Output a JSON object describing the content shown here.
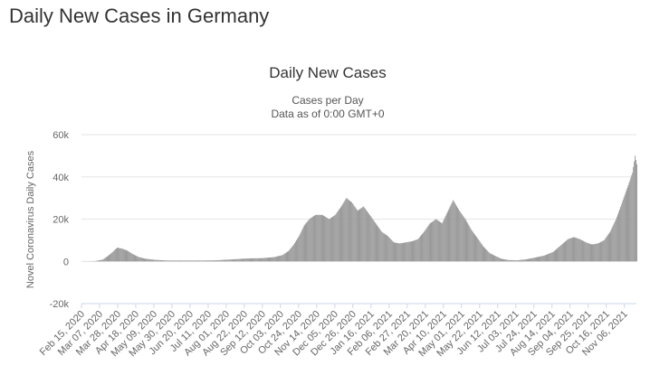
{
  "page": {
    "title": "Daily New Cases in Germany"
  },
  "chart_data": {
    "type": "bar",
    "title": "Daily New Cases",
    "subtitle": [
      "Cases per Day",
      "Data as of 0:00 GMT+0"
    ],
    "ylabel": "Novel Coronavirus Daily Cases",
    "xlabel": "",
    "ylim": [
      -20000,
      60000
    ],
    "yticks": [
      -20000,
      0,
      20000,
      40000,
      60000
    ],
    "ytick_labels": [
      "-20k",
      "0",
      "20k",
      "40k",
      "60k"
    ],
    "xlim": [
      "2020-02-15",
      "2021-11-20"
    ],
    "xtick_labels": [
      "Feb 15, 2020",
      "Mar 07, 2020",
      "Mar 28, 2020",
      "Apr 18, 2020",
      "May 09, 2020",
      "May 30, 2020",
      "Jun 20, 2020",
      "Jul 11, 2020",
      "Aug 01, 2020",
      "Aug 22, 2020",
      "Sep 12, 2020",
      "Oct 03, 2020",
      "Oct 24, 2020",
      "Nov 14, 2020",
      "Dec 05, 2020",
      "Dec 26, 2020",
      "Jan 16, 2021",
      "Feb 06, 2021",
      "Feb 27, 2021",
      "Mar 20, 2021",
      "Apr 10, 2021",
      "May 01, 2021",
      "May 22, 2021",
      "Jun 12, 2021",
      "Jul 03, 2021",
      "Jul 24, 2021",
      "Aug 14, 2021",
      "Sep 04, 2021",
      "Sep 25, 2021",
      "Oct 16, 2021",
      "Nov 06, 2021"
    ],
    "grid": true,
    "legend": "none",
    "color": "#999999",
    "series": [
      {
        "values": [
          {
            "x": "2020-02-15",
            "y": 0
          },
          {
            "x": "2020-03-01",
            "y": 100
          },
          {
            "x": "2020-03-10",
            "y": 800
          },
          {
            "x": "2020-03-16",
            "y": 2500
          },
          {
            "x": "2020-03-22",
            "y": 4500
          },
          {
            "x": "2020-03-27",
            "y": 6500
          },
          {
            "x": "2020-04-02",
            "y": 6000
          },
          {
            "x": "2020-04-08",
            "y": 5000
          },
          {
            "x": "2020-04-14",
            "y": 3500
          },
          {
            "x": "2020-04-20",
            "y": 2200
          },
          {
            "x": "2020-04-28",
            "y": 1300
          },
          {
            "x": "2020-05-10",
            "y": 700
          },
          {
            "x": "2020-05-25",
            "y": 400
          },
          {
            "x": "2020-06-15",
            "y": 400
          },
          {
            "x": "2020-07-01",
            "y": 400
          },
          {
            "x": "2020-07-20",
            "y": 500
          },
          {
            "x": "2020-08-10",
            "y": 1000
          },
          {
            "x": "2020-08-25",
            "y": 1400
          },
          {
            "x": "2020-09-10",
            "y": 1500
          },
          {
            "x": "2020-09-25",
            "y": 2000
          },
          {
            "x": "2020-10-05",
            "y": 3000
          },
          {
            "x": "2020-10-12",
            "y": 5000
          },
          {
            "x": "2020-10-18",
            "y": 8000
          },
          {
            "x": "2020-10-24",
            "y": 12000
          },
          {
            "x": "2020-10-30",
            "y": 17000
          },
          {
            "x": "2020-11-05",
            "y": 20000
          },
          {
            "x": "2020-11-12",
            "y": 22000
          },
          {
            "x": "2020-11-20",
            "y": 22000
          },
          {
            "x": "2020-11-28",
            "y": 20000
          },
          {
            "x": "2020-12-05",
            "y": 22000
          },
          {
            "x": "2020-12-12",
            "y": 26000
          },
          {
            "x": "2020-12-18",
            "y": 30000
          },
          {
            "x": "2020-12-24",
            "y": 28000
          },
          {
            "x": "2020-12-31",
            "y": 24000
          },
          {
            "x": "2021-01-07",
            "y": 26000
          },
          {
            "x": "2021-01-14",
            "y": 22000
          },
          {
            "x": "2021-01-21",
            "y": 18000
          },
          {
            "x": "2021-01-28",
            "y": 14000
          },
          {
            "x": "2021-02-04",
            "y": 12000
          },
          {
            "x": "2021-02-11",
            "y": 9000
          },
          {
            "x": "2021-02-18",
            "y": 8500
          },
          {
            "x": "2021-02-25",
            "y": 9000
          },
          {
            "x": "2021-03-04",
            "y": 9500
          },
          {
            "x": "2021-03-11",
            "y": 10500
          },
          {
            "x": "2021-03-18",
            "y": 14000
          },
          {
            "x": "2021-03-25",
            "y": 18000
          },
          {
            "x": "2021-04-01",
            "y": 20000
          },
          {
            "x": "2021-04-08",
            "y": 18000
          },
          {
            "x": "2021-04-15",
            "y": 24000
          },
          {
            "x": "2021-04-21",
            "y": 29000
          },
          {
            "x": "2021-04-28",
            "y": 24000
          },
          {
            "x": "2021-05-05",
            "y": 20000
          },
          {
            "x": "2021-05-12",
            "y": 15000
          },
          {
            "x": "2021-05-19",
            "y": 11000
          },
          {
            "x": "2021-05-26",
            "y": 7000
          },
          {
            "x": "2021-06-02",
            "y": 4000
          },
          {
            "x": "2021-06-09",
            "y": 2500
          },
          {
            "x": "2021-06-16",
            "y": 1200
          },
          {
            "x": "2021-06-25",
            "y": 600
          },
          {
            "x": "2021-07-05",
            "y": 500
          },
          {
            "x": "2021-07-15",
            "y": 1000
          },
          {
            "x": "2021-07-25",
            "y": 1800
          },
          {
            "x": "2021-08-05",
            "y": 2800
          },
          {
            "x": "2021-08-15",
            "y": 4500
          },
          {
            "x": "2021-08-25",
            "y": 8000
          },
          {
            "x": "2021-09-01",
            "y": 10500
          },
          {
            "x": "2021-09-08",
            "y": 11500
          },
          {
            "x": "2021-09-15",
            "y": 10500
          },
          {
            "x": "2021-09-22",
            "y": 9000
          },
          {
            "x": "2021-09-29",
            "y": 8000
          },
          {
            "x": "2021-10-06",
            "y": 8500
          },
          {
            "x": "2021-10-13",
            "y": 10000
          },
          {
            "x": "2021-10-20",
            "y": 14000
          },
          {
            "x": "2021-10-27",
            "y": 20000
          },
          {
            "x": "2021-11-03",
            "y": 28000
          },
          {
            "x": "2021-11-10",
            "y": 36000
          },
          {
            "x": "2021-11-15",
            "y": 42000
          },
          {
            "x": "2021-11-18",
            "y": 50000
          },
          {
            "x": "2021-11-20",
            "y": 46000
          }
        ]
      }
    ]
  }
}
